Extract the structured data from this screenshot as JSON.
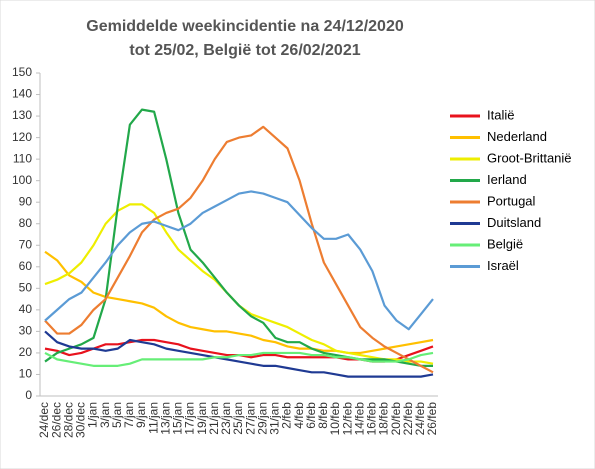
{
  "chart_data": {
    "type": "line",
    "title": [
      "Gemiddelde weekincidentie  na 24/12/2020",
      "tot 25/02, België tot 26/02/2021"
    ],
    "categories": [
      "24/dec",
      "26/dec",
      "28/dec",
      "30/dec",
      "1/jan",
      "3/jan",
      "5/jan",
      "7/jan",
      "9/jan",
      "11/jan",
      "13/jan",
      "15/jan",
      "17/jan",
      "19/jan",
      "21/jan",
      "23/jan",
      "25/jan",
      "27/jan",
      "29/jan",
      "31/jan",
      "2/feb",
      "4/feb",
      "6/feb",
      "8/feb",
      "10/feb",
      "12/feb",
      "14/feb",
      "16/feb",
      "18/feb",
      "20/feb",
      "22/feb",
      "24/feb",
      "26/feb"
    ],
    "ylim": [
      0,
      150
    ],
    "yticks": [
      0,
      10,
      20,
      30,
      40,
      50,
      60,
      70,
      80,
      90,
      100,
      110,
      120,
      130,
      140,
      150
    ],
    "grid": false,
    "legend": "right",
    "series": [
      {
        "name": "Italië",
        "color": "#e8121d",
        "values": [
          22,
          21,
          19,
          20,
          22,
          24,
          24,
          25,
          26,
          26,
          25,
          24,
          22,
          21,
          20,
          19,
          19,
          18,
          19,
          19,
          18,
          18,
          18,
          18,
          18,
          17,
          17,
          16,
          16,
          17,
          19,
          21,
          23
        ]
      },
      {
        "name": "Nederland",
        "color": "#ffc000",
        "values": [
          67,
          63,
          56,
          53,
          48,
          46,
          45,
          44,
          43,
          41,
          37,
          34,
          32,
          31,
          30,
          30,
          29,
          28,
          26,
          25,
          23,
          22,
          22,
          21,
          21,
          20,
          20,
          21,
          22,
          23,
          24,
          25,
          26
        ]
      },
      {
        "name": "Groot-Brittanië",
        "color": "#eeee00",
        "values": [
          52,
          54,
          57,
          62,
          70,
          80,
          86,
          89,
          89,
          85,
          76,
          68,
          63,
          58,
          54,
          48,
          42,
          38,
          36,
          34,
          32,
          29,
          26,
          24,
          21,
          20,
          19,
          18,
          17,
          17,
          16,
          16,
          15
        ]
      },
      {
        "name": "Ierland",
        "color": "#22a84a",
        "values": [
          16,
          20,
          22,
          24,
          27,
          45,
          88,
          126,
          133,
          132,
          110,
          85,
          68,
          62,
          55,
          48,
          42,
          37,
          34,
          27,
          25,
          25,
          22,
          20,
          19,
          18,
          17,
          17,
          17,
          16,
          15,
          14,
          14
        ]
      },
      {
        "name": "Portugal",
        "color": "#ed7d31",
        "values": [
          35,
          29,
          29,
          33,
          40,
          45,
          55,
          65,
          76,
          82,
          85,
          87,
          92,
          100,
          110,
          118,
          120,
          121,
          125,
          120,
          115,
          100,
          80,
          62,
          52,
          42,
          32,
          27,
          23,
          20,
          17,
          14,
          11
        ]
      },
      {
        "name": "Duitsland",
        "color": "#1f3a93",
        "values": [
          30,
          25,
          23,
          22,
          22,
          21,
          22,
          26,
          25,
          24,
          22,
          21,
          20,
          19,
          18,
          17,
          16,
          15,
          14,
          14,
          13,
          12,
          11,
          11,
          10,
          9,
          9,
          9,
          9,
          9,
          9,
          9,
          10
        ]
      },
      {
        "name": "België",
        "color": "#66ee77",
        "values": [
          20,
          17,
          16,
          15,
          14,
          14,
          14,
          15,
          17,
          17,
          17,
          17,
          17,
          17,
          18,
          18,
          19,
          19,
          20,
          20,
          20,
          20,
          19,
          19,
          18,
          18,
          17,
          16,
          16,
          16,
          17,
          19,
          20
        ]
      },
      {
        "name": "Israël",
        "color": "#5b9bd5",
        "values": [
          35,
          40,
          45,
          48,
          55,
          62,
          70,
          76,
          80,
          81,
          79,
          77,
          80,
          85,
          88,
          91,
          94,
          95,
          94,
          92,
          90,
          84,
          78,
          73,
          73,
          75,
          68,
          58,
          42,
          35,
          31,
          38,
          45
        ]
      }
    ]
  }
}
